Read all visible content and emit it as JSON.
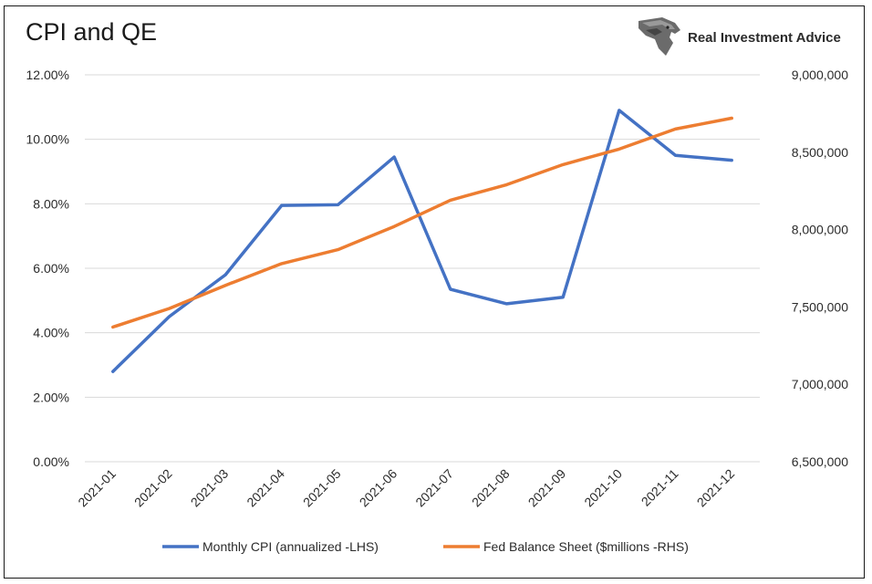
{
  "chart_data": {
    "type": "line",
    "title": "CPI and QE",
    "categories": [
      "2021-01",
      "2021-02",
      "2021-03",
      "2021-04",
      "2021-05",
      "2021-06",
      "2021-07",
      "2021-08",
      "2021-09",
      "2021-10",
      "2021-11",
      "2021-12"
    ],
    "y_left": {
      "min": 0,
      "max": 12,
      "step": 2,
      "tick_labels": [
        "0.00%",
        "2.00%",
        "4.00%",
        "6.00%",
        "8.00%",
        "10.00%",
        "12.00%"
      ]
    },
    "y_right": {
      "min": 6500000,
      "max": 9000000,
      "step": 500000,
      "tick_labels": [
        "6,500,000",
        "7,000,000",
        "7,500,000",
        "8,000,000",
        "8,500,000",
        "9,000,000"
      ]
    },
    "series": [
      {
        "name": "Monthly CPI (annualized -LHS)",
        "axis": "left",
        "color": "#4472C4",
        "values": [
          2.8,
          4.5,
          5.8,
          7.95,
          7.97,
          9.45,
          5.35,
          4.9,
          5.1,
          10.9,
          9.5,
          9.35
        ]
      },
      {
        "name": "Fed Balance Sheet ($millions -RHS)",
        "axis": "right",
        "color": "#ED7D31",
        "values": [
          7370000,
          7490000,
          7640000,
          7780000,
          7870000,
          8020000,
          8190000,
          8290000,
          8420000,
          8520000,
          8650000,
          8720000
        ]
      }
    ],
    "grid": true,
    "legend_position": "bottom"
  },
  "brand": {
    "name": "Real Investment Advice",
    "logo_icon": "eagle-head-icon"
  }
}
